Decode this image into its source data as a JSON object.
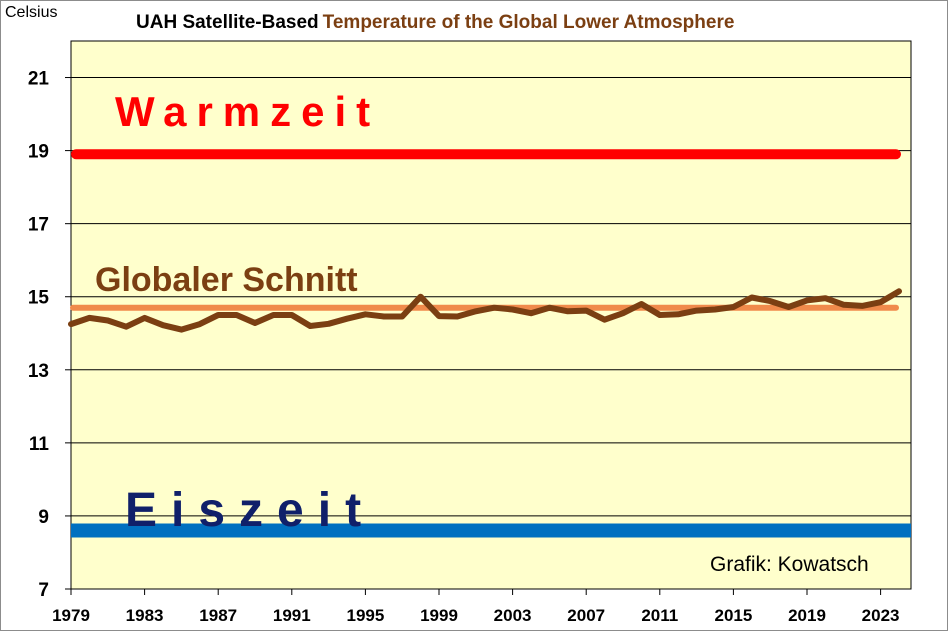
{
  "chart_data": {
    "type": "line",
    "title_part1": "UAH Satellite-Based",
    "title_part2": "Temperature of the Global Lower Atmosphere",
    "ylabel": "Celsius",
    "ylim": [
      7,
      22
    ],
    "xlim": [
      1979,
      2024
    ],
    "yticks": [
      7,
      9,
      11,
      13,
      15,
      17,
      19,
      21
    ],
    "xticks": [
      1979,
      1983,
      1987,
      1991,
      1995,
      1999,
      2003,
      2007,
      2011,
      2015,
      2019,
      2023
    ],
    "grid": true,
    "series": [
      {
        "color": "#7b3f12",
        "x": [
          1979,
          1980,
          1981,
          1982,
          1983,
          1984,
          1985,
          1986,
          1987,
          1988,
          1989,
          1990,
          1991,
          1992,
          1993,
          1994,
          1995,
          1996,
          1997,
          1998,
          1999,
          2000,
          2001,
          2002,
          2003,
          2004,
          2005,
          2006,
          2007,
          2008,
          2009,
          2010,
          2011,
          2012,
          2013,
          2014,
          2015,
          2016,
          2017,
          2018,
          2019,
          2020,
          2021,
          2022,
          2023,
          2024
        ],
        "y": [
          14.25,
          14.42,
          14.35,
          14.18,
          14.42,
          14.22,
          14.1,
          14.25,
          14.5,
          14.5,
          14.28,
          14.5,
          14.5,
          14.2,
          14.26,
          14.4,
          14.52,
          14.46,
          14.46,
          15.0,
          14.47,
          14.46,
          14.6,
          14.7,
          14.65,
          14.55,
          14.7,
          14.6,
          14.62,
          14.37,
          14.55,
          14.8,
          14.5,
          14.52,
          14.62,
          14.65,
          14.72,
          14.98,
          14.88,
          14.72,
          14.9,
          14.96,
          14.78,
          14.75,
          14.85,
          15.15
        ]
      }
    ],
    "reference_lines": [
      {
        "label": "Warmzeit",
        "value": 18.9,
        "color": "#ff0000"
      },
      {
        "label": "Globaler Schnitt",
        "value": 14.7,
        "color": "#f08a4b"
      },
      {
        "label": "Eiszeit",
        "value": 8.6,
        "color": "#0070c0"
      }
    ],
    "credit": "Grafik: Kowatsch",
    "colors": {
      "plot_background": "#ffffcc",
      "grid": "#000000"
    }
  }
}
